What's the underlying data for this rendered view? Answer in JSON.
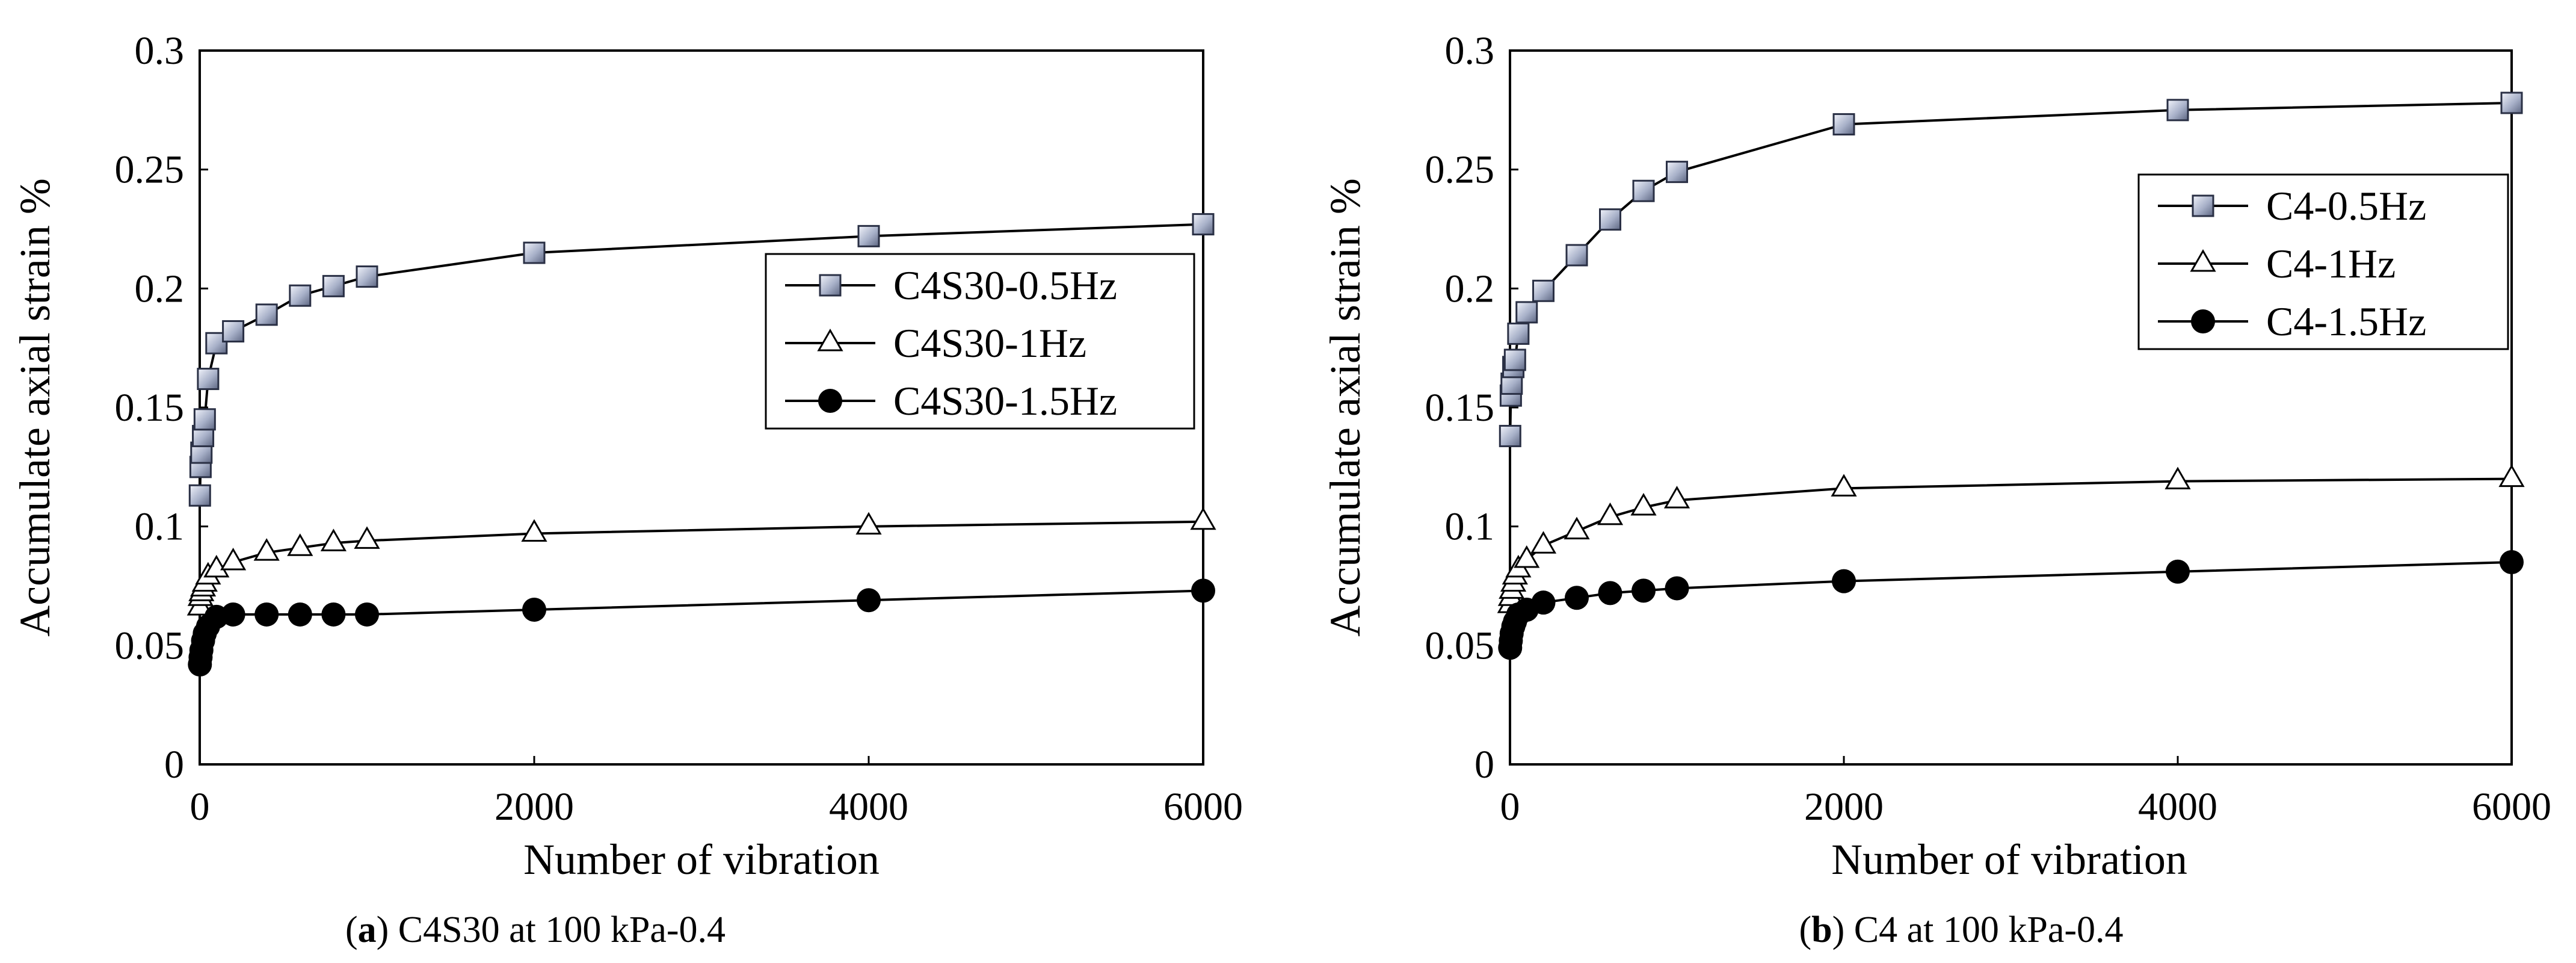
{
  "chart_data": [
    {
      "type": "line",
      "id": "a",
      "caption_label": "a",
      "caption_text": "C4S30 at 100 kPa-0.4",
      "xlabel": "Number of vibration",
      "ylabel": "Accumulate axial strain %",
      "xlim": [
        0,
        6000
      ],
      "ylim": [
        0,
        0.3
      ],
      "xticks": [
        0,
        2000,
        4000,
        6000
      ],
      "xtick_labels": [
        "0",
        "2000",
        "4000",
        "6000"
      ],
      "yticks": [
        0,
        0.05,
        0.1,
        0.15,
        0.2,
        0.25,
        0.3
      ],
      "ytick_labels": [
        "0",
        "0.05",
        "0.1",
        "0.15",
        "0.2",
        "0.25",
        "0.3"
      ],
      "legend_position": "center-right",
      "series": [
        {
          "name": "C4S30-0.5Hz",
          "marker": "square",
          "x": [
            1,
            5,
            10,
            20,
            30,
            50,
            100,
            200,
            400,
            600,
            800,
            1000,
            2000,
            4000,
            6000
          ],
          "y": [
            0.113,
            0.125,
            0.131,
            0.138,
            0.145,
            0.162,
            0.177,
            0.182,
            0.189,
            0.197,
            0.201,
            0.205,
            0.215,
            0.222,
            0.227
          ]
        },
        {
          "name": "C4S30-1Hz",
          "marker": "triangle",
          "x": [
            1,
            5,
            10,
            20,
            30,
            50,
            100,
            200,
            400,
            600,
            800,
            1000,
            2000,
            4000,
            6000
          ],
          "y": [
            0.066,
            0.07,
            0.072,
            0.074,
            0.076,
            0.079,
            0.082,
            0.085,
            0.089,
            0.091,
            0.093,
            0.094,
            0.097,
            0.1,
            0.102
          ]
        },
        {
          "name": "C4S30-1.5Hz",
          "marker": "circle",
          "x": [
            1,
            5,
            10,
            20,
            30,
            50,
            100,
            200,
            400,
            600,
            800,
            1000,
            2000,
            4000,
            6000
          ],
          "y": [
            0.042,
            0.045,
            0.048,
            0.052,
            0.055,
            0.058,
            0.062,
            0.063,
            0.063,
            0.063,
            0.063,
            0.063,
            0.065,
            0.069,
            0.073
          ]
        }
      ]
    },
    {
      "type": "line",
      "id": "b",
      "caption_label": "b",
      "caption_text": "C4 at 100 kPa-0.4",
      "xlabel": "Number of vibration",
      "ylabel": "Accumulate axial strain %",
      "xlim": [
        0,
        6000
      ],
      "ylim": [
        0,
        0.3
      ],
      "xticks": [
        0,
        2000,
        4000,
        6000
      ],
      "xtick_labels": [
        "0",
        "2000",
        "4000",
        "6000"
      ],
      "yticks": [
        0,
        0.05,
        0.1,
        0.15,
        0.2,
        0.25,
        0.3
      ],
      "ytick_labels": [
        "0",
        "0.05",
        "0.1",
        "0.15",
        "0.2",
        "0.25",
        "0.3"
      ],
      "legend_position": "top-right",
      "series": [
        {
          "name": "C4-0.5Hz",
          "marker": "square",
          "x": [
            1,
            5,
            10,
            20,
            30,
            50,
            100,
            200,
            400,
            600,
            800,
            1000,
            2000,
            4000,
            6000
          ],
          "y": [
            0.138,
            0.155,
            0.16,
            0.167,
            0.17,
            0.181,
            0.19,
            0.199,
            0.214,
            0.229,
            0.241,
            0.249,
            0.269,
            0.275,
            0.278
          ]
        },
        {
          "name": "C4-1Hz",
          "marker": "triangle",
          "x": [
            1,
            5,
            10,
            20,
            30,
            50,
            100,
            200,
            400,
            600,
            800,
            1000,
            2000,
            4000,
            6000
          ],
          "y": [
            0.067,
            0.07,
            0.073,
            0.076,
            0.079,
            0.082,
            0.086,
            0.092,
            0.098,
            0.104,
            0.108,
            0.111,
            0.116,
            0.119,
            0.12
          ]
        },
        {
          "name": "C4-1.5Hz",
          "marker": "circle",
          "x": [
            1,
            5,
            10,
            20,
            30,
            50,
            100,
            200,
            400,
            600,
            800,
            1000,
            2000,
            4000,
            6000
          ],
          "y": [
            0.049,
            0.052,
            0.055,
            0.058,
            0.06,
            0.063,
            0.065,
            0.068,
            0.07,
            0.072,
            0.073,
            0.074,
            0.077,
            0.081,
            0.085
          ]
        }
      ]
    }
  ]
}
